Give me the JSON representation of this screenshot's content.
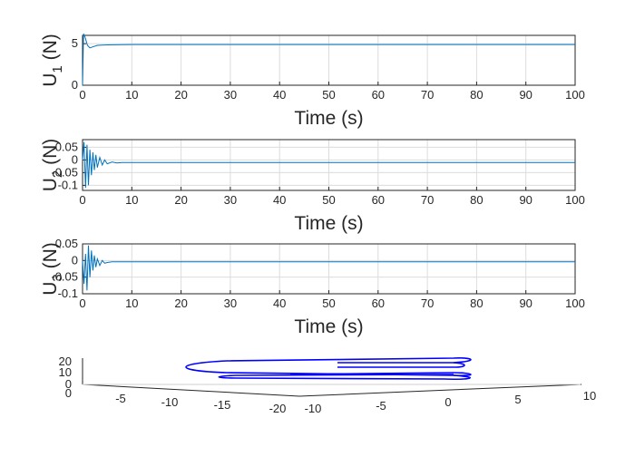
{
  "chart_data": [
    {
      "type": "line",
      "xlabel": "Time (s)",
      "ylabel_main": "U",
      "ylabel_sub": "1",
      "ylabel_unit": " (N)",
      "xlim": [
        0,
        100
      ],
      "ylim": [
        0,
        6
      ],
      "xticks": [
        "0",
        "10",
        "20",
        "30",
        "40",
        "50",
        "60",
        "70",
        "80",
        "90",
        "100"
      ],
      "yticks": [
        {
          "v": 0,
          "t": "0"
        },
        {
          "v": 5,
          "t": "5"
        }
      ],
      "grid": true,
      "series": [
        {
          "x": [
            0,
            0.2,
            0.5,
            1,
            1.5,
            2,
            3,
            5,
            10,
            20,
            30,
            40,
            50,
            60,
            70,
            80,
            90,
            100
          ],
          "y": [
            0,
            6.2,
            5.8,
            4.8,
            4.5,
            4.6,
            4.8,
            4.85,
            4.9,
            4.9,
            4.9,
            4.9,
            4.9,
            4.9,
            4.9,
            4.9,
            4.9,
            4.9
          ]
        }
      ]
    },
    {
      "type": "line",
      "xlabel": "Time (s)",
      "ylabel_main": "U",
      "ylabel_sub": "2",
      "ylabel_unit": " (N)",
      "xlim": [
        0,
        100
      ],
      "ylim": [
        -0.12,
        0.08
      ],
      "xticks": [
        "0",
        "10",
        "20",
        "30",
        "40",
        "50",
        "60",
        "70",
        "80",
        "90",
        "100"
      ],
      "yticks": [
        {
          "v": 0.05,
          "t": "0.05"
        },
        {
          "v": 0,
          "t": "0"
        },
        {
          "v": -0.05,
          "t": "-0.05"
        },
        {
          "v": -0.1,
          "t": "-0.1"
        }
      ],
      "grid": true,
      "series": [
        {
          "x": [
            0,
            0.3,
            0.6,
            0.9,
            1.2,
            1.5,
            1.8,
            2.1,
            2.4,
            2.7,
            3,
            3.5,
            4,
            4.5,
            5,
            6,
            7,
            8,
            10,
            20,
            30,
            40,
            50,
            60,
            70,
            80,
            90,
            100
          ],
          "y": [
            0,
            0.07,
            -0.11,
            0.06,
            -0.1,
            0.04,
            -0.06,
            0.03,
            -0.04,
            0.02,
            -0.03,
            0.01,
            -0.02,
            0,
            -0.015,
            -0.008,
            -0.012,
            -0.01,
            -0.01,
            -0.01,
            -0.01,
            -0.01,
            -0.01,
            -0.01,
            -0.01,
            -0.01,
            -0.01,
            -0.01
          ]
        }
      ]
    },
    {
      "type": "line",
      "xlabel": "Time (s)",
      "ylabel_main": "U",
      "ylabel_sub": "3",
      "ylabel_unit": " (N)",
      "xlim": [
        0,
        100
      ],
      "ylim": [
        -0.1,
        0.05
      ],
      "xticks": [
        "0",
        "10",
        "20",
        "30",
        "40",
        "50",
        "60",
        "70",
        "80",
        "90",
        "100"
      ],
      "yticks": [
        {
          "v": 0.05,
          "t": "0.05"
        },
        {
          "v": 0,
          "t": "0"
        },
        {
          "v": -0.05,
          "t": "-0.05"
        },
        {
          "v": -0.1,
          "t": "-0.1"
        }
      ],
      "grid": true,
      "series": [
        {
          "x": [
            0,
            0.3,
            0.6,
            0.9,
            1.2,
            1.5,
            1.8,
            2.1,
            2.4,
            2.7,
            3,
            3.5,
            4,
            4.5,
            5,
            6,
            8,
            10,
            20,
            30,
            40,
            50,
            60,
            70,
            80,
            90,
            100
          ],
          "y": [
            0,
            -0.07,
            0.02,
            -0.09,
            0.045,
            -0.05,
            0.03,
            -0.03,
            0.015,
            -0.02,
            0.005,
            -0.015,
            0,
            -0.008,
            -0.006,
            -0.004,
            -0.004,
            -0.004,
            -0.004,
            -0.004,
            -0.004,
            -0.004,
            -0.004,
            -0.004,
            -0.004,
            -0.004,
            -0.004
          ]
        }
      ]
    },
    {
      "type": "line",
      "projection": "3d",
      "x_axis_ticks": [
        "-5",
        "-10",
        "-15",
        "-20"
      ],
      "y_axis_ticks": [
        "-10",
        "-5",
        "0",
        "5",
        "10"
      ],
      "z_axis_ticks": [
        "0",
        "0",
        "10",
        "20"
      ],
      "series": [
        {
          "name": "",
          "description_values": "trajectory loops between roughly x -20 and 10"
        }
      ]
    }
  ]
}
